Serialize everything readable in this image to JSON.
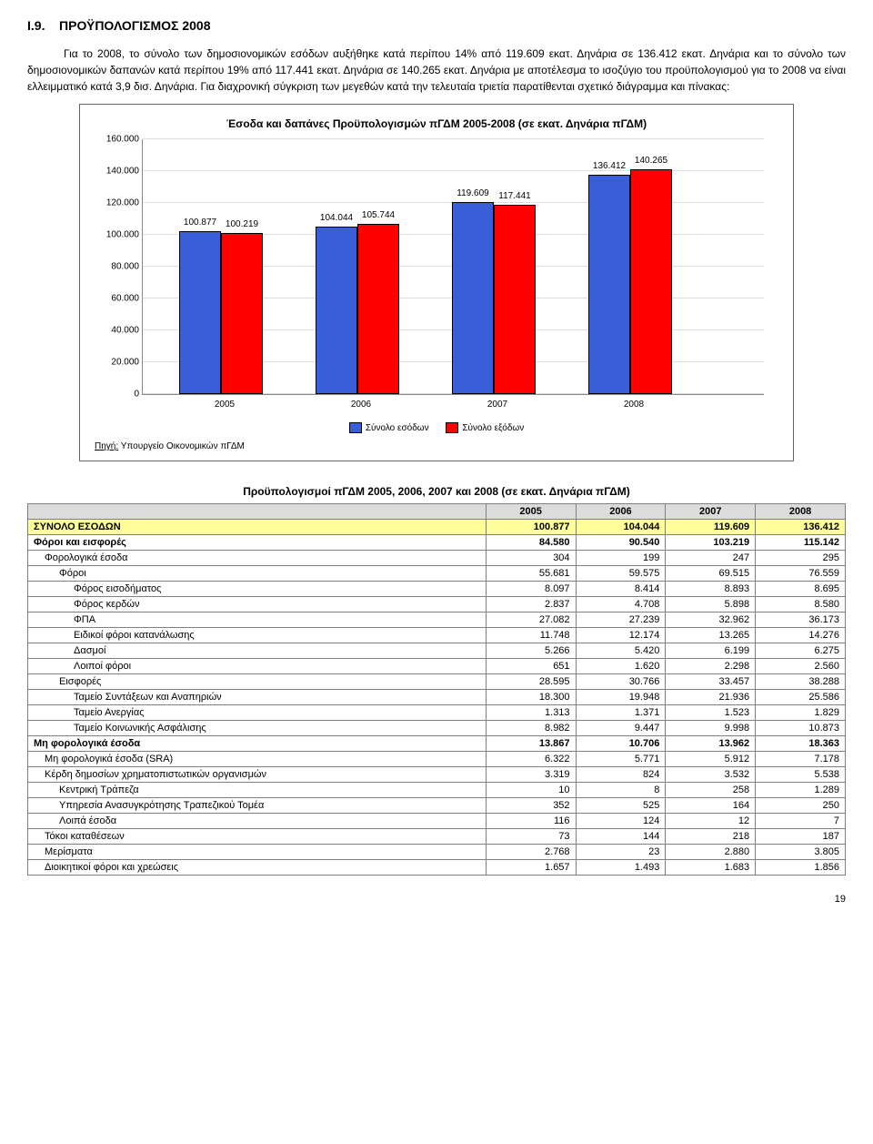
{
  "section": {
    "number": "Ι.9.",
    "title": "ΠΡΟΫΠΟΛΟΓΙΣΜΟΣ 2008",
    "para1": "Για το 2008, το σύνολο των δημοσιονομικών εσόδων αυξήθηκε κατά περίπου 14% από 119.609 εκατ. Δηνάρια σε 136.412 εκατ. Δηνάρια και το σύνολο των δημοσιονομικών δαπανών κατά περίπου 19% από 117.441 εκατ. Δηνάρια σε 140.265 εκατ. Δηνάρια με αποτέλεσμα το ισοζύγιο του προϋπολογισμού για το 2008 να είναι ελλειμματικό κατά 3,9 δισ. Δηνάρια. Για διαχρονική σύγκριση των μεγεθών κατά την τελευταία τριετία παρατίθενται σχετικό διάγραμμα και πίνακας:"
  },
  "chart": {
    "title": "Έσοδα και δαπάνες Προϋπολογισμών πΓΔΜ 2005-2008 (σε εκατ. Δηνάρια πΓΔΜ)",
    "ymax": 160,
    "ytick_step": 20,
    "yticks": [
      "0",
      "20.000",
      "40.000",
      "60.000",
      "80.000",
      "100.000",
      "120.000",
      "140.000",
      "160.000"
    ],
    "categories": [
      "2005",
      "2006",
      "2007",
      "2008"
    ],
    "series": [
      {
        "name": "Σύνολο εσόδων",
        "color": "#3a5ed9"
      },
      {
        "name": "Σύνολο εξόδων",
        "color": "#ff0000"
      }
    ],
    "values": [
      {
        "a": 100.877,
        "a_label": "100.877",
        "b": 100.219,
        "b_label": "100.219"
      },
      {
        "a": 104.044,
        "a_label": "104.044",
        "b": 105.744,
        "b_label": "105.744"
      },
      {
        "a": 119.609,
        "a_label": "119.609",
        "b": 117.441,
        "b_label": "117.441"
      },
      {
        "a": 136.412,
        "a_label": "136.412",
        "b": 140.265,
        "b_label": "140.265"
      }
    ],
    "legend_a": "Σύνολο εσόδων",
    "legend_b": "Σύνολο εξόδων",
    "source_label": "Πηγή:",
    "source_text": "Υπουργείο Οικονομικών πΓΔΜ"
  },
  "table": {
    "heading": "Προϋπολογισμοί πΓΔΜ 2005, 2006, 2007 και 2008 (σε εκατ. Δηνάρια πΓΔΜ)",
    "cols": [
      "2005",
      "2006",
      "2007",
      "2008"
    ],
    "rows": [
      {
        "label": "ΣΥΝΟΛΟ ΕΣΟΔΩΝ",
        "ind": 0,
        "style": "hl",
        "v": [
          "100.877",
          "104.044",
          "119.609",
          "136.412"
        ]
      },
      {
        "label": "Φόροι και εισφορές",
        "ind": 0,
        "style": "bold",
        "v": [
          "84.580",
          "90.540",
          "103.219",
          "115.142"
        ]
      },
      {
        "label": "Φορολογικά έσοδα",
        "ind": 1,
        "style": "",
        "v": [
          "304",
          "199",
          "247",
          "295"
        ]
      },
      {
        "label": "Φόροι",
        "ind": 2,
        "style": "",
        "v": [
          "55.681",
          "59.575",
          "69.515",
          "76.559"
        ]
      },
      {
        "label": "Φόρος εισοδήματος",
        "ind": 3,
        "style": "",
        "v": [
          "8.097",
          "8.414",
          "8.893",
          "8.695"
        ]
      },
      {
        "label": "Φόρος κερδών",
        "ind": 3,
        "style": "",
        "v": [
          "2.837",
          "4.708",
          "5.898",
          "8.580"
        ]
      },
      {
        "label": "ΦΠΑ",
        "ind": 3,
        "style": "",
        "v": [
          "27.082",
          "27.239",
          "32.962",
          "36.173"
        ]
      },
      {
        "label": "Ειδικοί φόροι κατανάλωσης",
        "ind": 3,
        "style": "",
        "v": [
          "11.748",
          "12.174",
          "13.265",
          "14.276"
        ]
      },
      {
        "label": "Δασμοί",
        "ind": 3,
        "style": "",
        "v": [
          "5.266",
          "5.420",
          "6.199",
          "6.275"
        ]
      },
      {
        "label": "Λοιποί φόροι",
        "ind": 3,
        "style": "",
        "v": [
          "651",
          "1.620",
          "2.298",
          "2.560"
        ]
      },
      {
        "label": "Εισφορές",
        "ind": 2,
        "style": "",
        "v": [
          "28.595",
          "30.766",
          "33.457",
          "38.288"
        ]
      },
      {
        "label": "Ταμείο Συντάξεων και Αναπηριών",
        "ind": 3,
        "style": "",
        "v": [
          "18.300",
          "19.948",
          "21.936",
          "25.586"
        ]
      },
      {
        "label": "Ταμείο Ανεργίας",
        "ind": 3,
        "style": "",
        "v": [
          "1.313",
          "1.371",
          "1.523",
          "1.829"
        ]
      },
      {
        "label": "Ταμείο Κοινωνικής Ασφάλισης",
        "ind": 3,
        "style": "",
        "v": [
          "8.982",
          "9.447",
          "9.998",
          "10.873"
        ]
      },
      {
        "label": "Μη φορολογικά έσοδα",
        "ind": 0,
        "style": "bold",
        "v": [
          "13.867",
          "10.706",
          "13.962",
          "18.363"
        ]
      },
      {
        "label": "Μη φορολογικά έσοδα (SRA)",
        "ind": 1,
        "style": "",
        "v": [
          "6.322",
          "5.771",
          "5.912",
          "7.178"
        ]
      },
      {
        "label": "Κέρδη δημοσίων χρηματοπιστωτικών οργανισμών",
        "ind": 1,
        "style": "",
        "v": [
          "3.319",
          "824",
          "3.532",
          "5.538"
        ]
      },
      {
        "label": "Κεντρική Τράπεζα",
        "ind": 2,
        "style": "",
        "v": [
          "10",
          "8",
          "258",
          "1.289"
        ]
      },
      {
        "label": "Υπηρεσία Ανασυγκρότησης Τραπεζικού Τομέα",
        "ind": 2,
        "style": "",
        "v": [
          "352",
          "525",
          "164",
          "250"
        ]
      },
      {
        "label": "Λοιπά έσοδα",
        "ind": 2,
        "style": "",
        "v": [
          "116",
          "124",
          "12",
          "7"
        ]
      },
      {
        "label": "Τόκοι καταθέσεων",
        "ind": 1,
        "style": "",
        "v": [
          "73",
          "144",
          "218",
          "187"
        ]
      },
      {
        "label": "Μερίσματα",
        "ind": 1,
        "style": "",
        "v": [
          "2.768",
          "23",
          "2.880",
          "3.805"
        ]
      },
      {
        "label": "Διοικητικοί φόροι και χρεώσεις",
        "ind": 1,
        "style": "",
        "v": [
          "1.657",
          "1.493",
          "1.683",
          "1.856"
        ]
      }
    ]
  },
  "page_num": "19"
}
